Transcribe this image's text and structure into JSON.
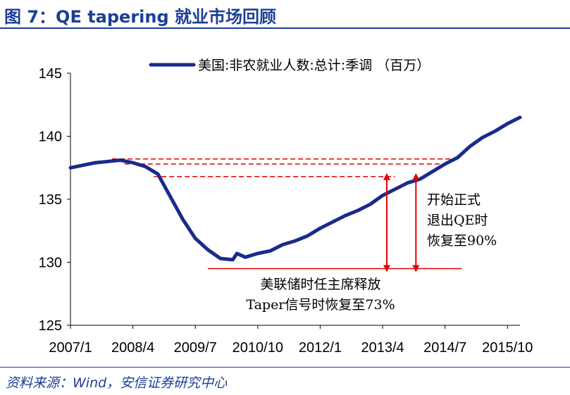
{
  "header": {
    "title": "图 7：QE tapering 就业市场回顾"
  },
  "footer": {
    "source": "资料来源：Wind，安信证券研究中心"
  },
  "colors": {
    "brand_blue": "#1c3f95",
    "series_line": "#1a2a8c",
    "annotation_red": "#e30000"
  },
  "chart_data": {
    "type": "line",
    "title": "",
    "xlabel": "",
    "ylabel": "",
    "ylim": [
      125,
      145
    ],
    "yticks": [
      "125",
      "130",
      "135",
      "140",
      "145"
    ],
    "xticks": [
      "2007/1",
      "2008/4",
      "2009/7",
      "2010/10",
      "2012/1",
      "2013/4",
      "2014/7",
      "2015/10"
    ],
    "x_range": [
      "2007/1",
      "2016/1"
    ],
    "legend_position": "top",
    "grid": false,
    "series": [
      {
        "name": "美国:非农就业人数:总计:季调 （百万）",
        "points": [
          [
            "2007/1",
            137.5
          ],
          [
            "2007/4",
            137.7
          ],
          [
            "2007/7",
            137.9
          ],
          [
            "2007/10",
            138.0
          ],
          [
            "2008/1",
            138.1
          ],
          [
            "2008/4",
            137.9
          ],
          [
            "2008/7",
            137.6
          ],
          [
            "2008/10",
            137.0
          ],
          [
            "2009/1",
            135.2
          ],
          [
            "2009/4",
            133.4
          ],
          [
            "2009/7",
            131.9
          ],
          [
            "2009/10",
            131.0
          ],
          [
            "2010/1",
            130.3
          ],
          [
            "2010/4",
            130.2
          ],
          [
            "2010/5",
            130.7
          ],
          [
            "2010/7",
            130.4
          ],
          [
            "2010/10",
            130.7
          ],
          [
            "2011/1",
            130.9
          ],
          [
            "2011/4",
            131.4
          ],
          [
            "2011/7",
            131.7
          ],
          [
            "2011/10",
            132.1
          ],
          [
            "2012/1",
            132.7
          ],
          [
            "2012/4",
            133.2
          ],
          [
            "2012/7",
            133.7
          ],
          [
            "2012/10",
            134.1
          ],
          [
            "2013/1",
            134.6
          ],
          [
            "2013/4",
            135.3
          ],
          [
            "2013/7",
            135.8
          ],
          [
            "2013/10",
            136.3
          ],
          [
            "2014/1",
            136.6
          ],
          [
            "2014/4",
            137.2
          ],
          [
            "2014/7",
            137.8
          ],
          [
            "2014/10",
            138.3
          ],
          [
            "2015/1",
            139.2
          ],
          [
            "2015/4",
            139.9
          ],
          [
            "2015/7",
            140.4
          ],
          [
            "2015/10",
            141.0
          ],
          [
            "2016/1",
            141.5
          ]
        ]
      }
    ],
    "reference_lines": [
      {
        "y": 138.2,
        "from": "2007/11",
        "to": "2014/10"
      },
      {
        "y": 137.8,
        "from": "2008/2",
        "to": "2014/7"
      },
      {
        "y": 136.8,
        "from": "2008/9",
        "to": "2013/7"
      }
    ],
    "baseline": {
      "y": 129.5,
      "from": "2009/10",
      "to": "2014/11"
    },
    "annotations": [
      {
        "lines": [
          "美联储时任主席释放",
          "Taper信号时恢复至73%"
        ],
        "at": "2013/5"
      },
      {
        "lines": [
          "开始正式",
          "退出QE时",
          "恢复至90%"
        ],
        "at": "2013/12"
      }
    ]
  }
}
